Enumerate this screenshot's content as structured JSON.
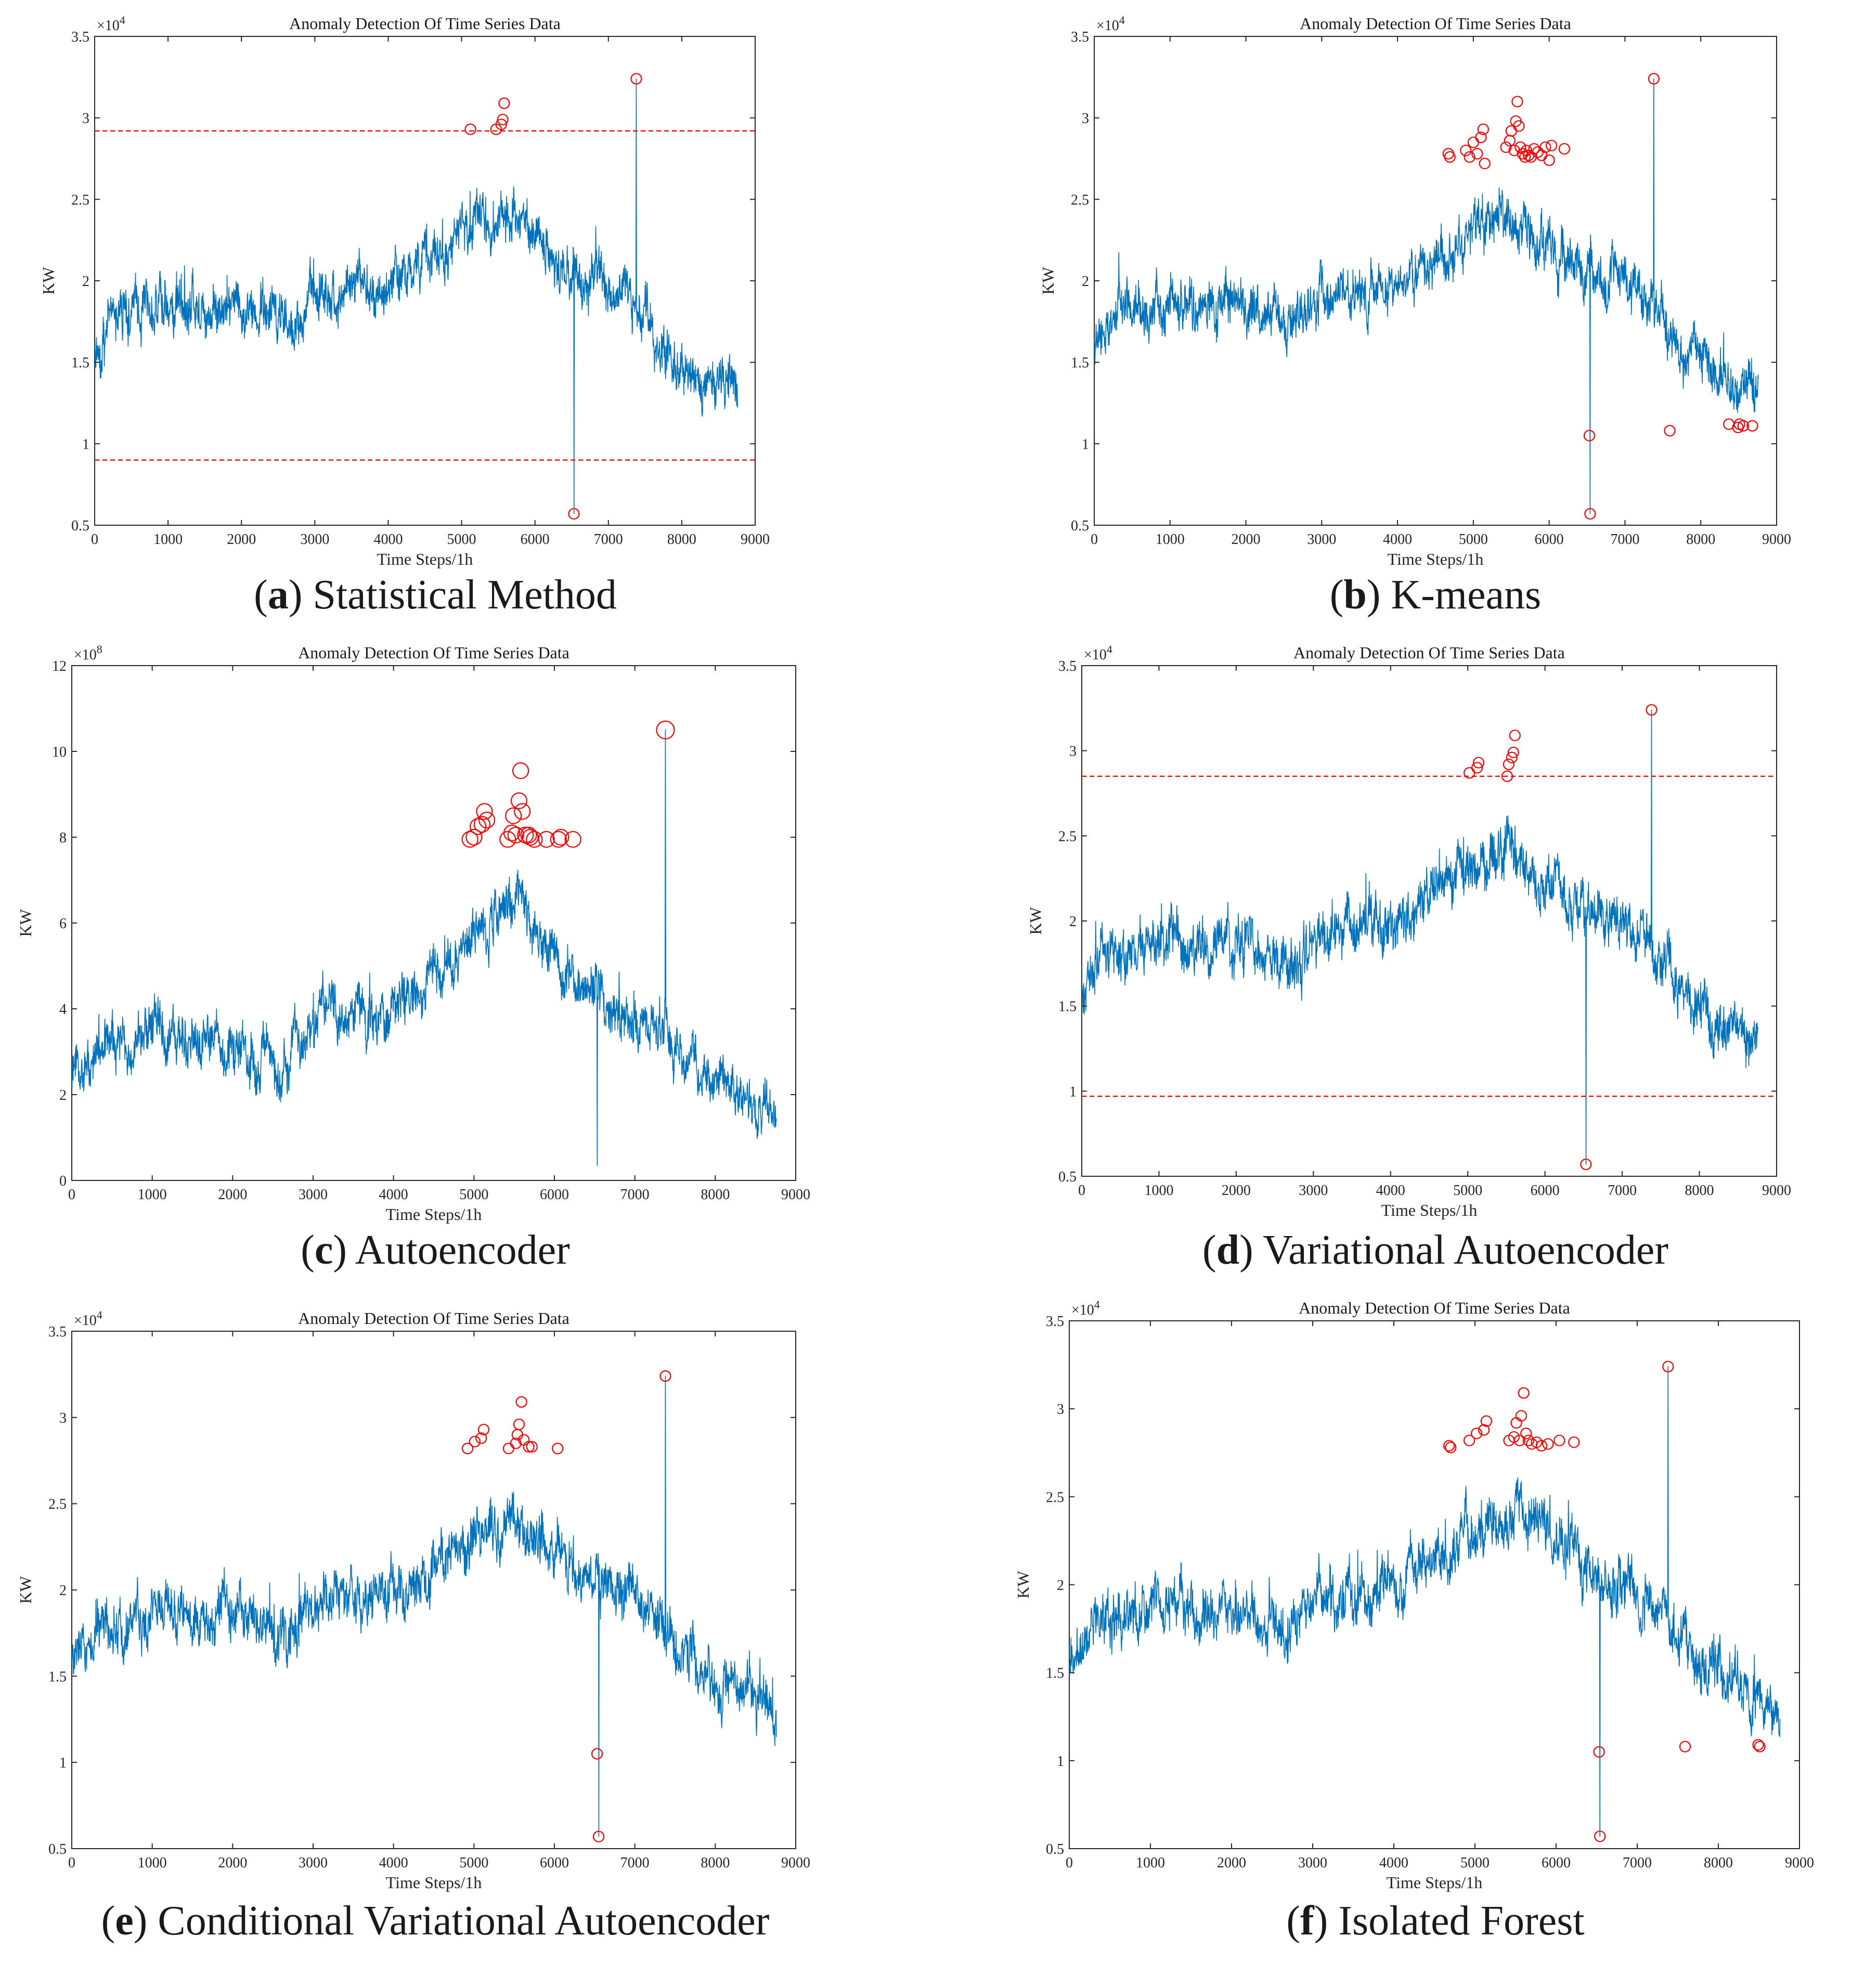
{
  "chart_data": [
    {
      "type": "line",
      "panel": "a",
      "caption_letter": "(a)",
      "caption_text": "Statistical Method",
      "title": "Anomaly Detection Of Time Series Data",
      "xlabel": "Time Steps/1h",
      "ylabel": "KW",
      "y_exponent": "×10",
      "y_exponent_power": "4",
      "xlim": [
        0,
        9000
      ],
      "ylim": [
        0.5,
        3.5
      ],
      "xticks": [
        0,
        1000,
        2000,
        3000,
        4000,
        5000,
        6000,
        7000,
        8000,
        9000
      ],
      "yticks": [
        0.5,
        1,
        1.5,
        2,
        2.5,
        3,
        3.5
      ],
      "ytick_labels": [
        "0.5",
        "1",
        "1.5",
        "2",
        "2.5",
        "3",
        "3.5"
      ],
      "series_color": "#0072BD",
      "anomaly_color": "#FF0000",
      "thresholds": [
        2.92,
        0.9
      ],
      "anomalies": [
        [
          5120,
          2.93
        ],
        [
          5470,
          2.93
        ],
        [
          5540,
          2.96
        ],
        [
          5560,
          2.99
        ],
        [
          5580,
          3.09
        ],
        [
          6530,
          0.57
        ],
        [
          7380,
          3.24
        ]
      ],
      "profile": [
        [
          0,
          1.55
        ],
        [
          300,
          1.8
        ],
        [
          1000,
          1.88
        ],
        [
          1500,
          1.83
        ],
        [
          2000,
          1.86
        ],
        [
          2700,
          1.72
        ],
        [
          3000,
          1.92
        ],
        [
          3500,
          1.95
        ],
        [
          4000,
          1.98
        ],
        [
          4500,
          2.1
        ],
        [
          5000,
          2.3
        ],
        [
          5300,
          2.35
        ],
        [
          5600,
          2.4
        ],
        [
          6000,
          2.25
        ],
        [
          6300,
          2.08
        ],
        [
          7000,
          2.0
        ],
        [
          7400,
          1.8
        ],
        [
          7800,
          1.55
        ],
        [
          8300,
          1.4
        ],
        [
          8750,
          1.3
        ]
      ],
      "spikes": [
        [
          6530,
          0.57
        ],
        [
          7380,
          3.24
        ]
      ],
      "noise": 0.14
    },
    {
      "type": "line",
      "panel": "b",
      "caption_letter": "(b)",
      "caption_text": "K-means",
      "title": "Anomaly Detection Of Time Series Data",
      "xlabel": "Time Steps/1h",
      "ylabel": "KW",
      "y_exponent": "×10",
      "y_exponent_power": "4",
      "xlim": [
        0,
        9000
      ],
      "ylim": [
        0.5,
        3.5
      ],
      "xticks": [
        0,
        1000,
        2000,
        3000,
        4000,
        5000,
        6000,
        7000,
        8000,
        9000
      ],
      "yticks": [
        0.5,
        1,
        1.5,
        2,
        2.5,
        3,
        3.5
      ],
      "ytick_labels": [
        "0.5",
        "1",
        "1.5",
        "2",
        "2.5",
        "3",
        "3.5"
      ],
      "series_color": "#0072BD",
      "anomaly_color": "#FF0000",
      "thresholds": [],
      "anomalies": [
        [
          4670,
          2.78
        ],
        [
          4690,
          2.76
        ],
        [
          4900,
          2.8
        ],
        [
          4950,
          2.76
        ],
        [
          5000,
          2.85
        ],
        [
          5050,
          2.78
        ],
        [
          5100,
          2.88
        ],
        [
          5130,
          2.93
        ],
        [
          5150,
          2.72
        ],
        [
          5430,
          2.82
        ],
        [
          5480,
          2.86
        ],
        [
          5500,
          2.92
        ],
        [
          5540,
          2.8
        ],
        [
          5560,
          2.98
        ],
        [
          5580,
          3.1
        ],
        [
          5600,
          2.95
        ],
        [
          5620,
          2.82
        ],
        [
          5650,
          2.78
        ],
        [
          5680,
          2.76
        ],
        [
          5700,
          2.8
        ],
        [
          5730,
          2.77
        ],
        [
          5760,
          2.76
        ],
        [
          5800,
          2.81
        ],
        [
          5850,
          2.79
        ],
        [
          5900,
          2.77
        ],
        [
          5950,
          2.82
        ],
        [
          6000,
          2.74
        ],
        [
          6030,
          2.83
        ],
        [
          6200,
          2.81
        ],
        [
          6530,
          1.05
        ],
        [
          6540,
          0.57
        ],
        [
          7380,
          3.24
        ],
        [
          7590,
          1.08
        ],
        [
          8370,
          1.12
        ],
        [
          8490,
          1.1
        ],
        [
          8510,
          1.12
        ],
        [
          8560,
          1.11
        ],
        [
          8680,
          1.11
        ]
      ],
      "profile": [
        [
          0,
          1.55
        ],
        [
          300,
          1.8
        ],
        [
          1000,
          1.88
        ],
        [
          1500,
          1.83
        ],
        [
          2000,
          1.86
        ],
        [
          2700,
          1.72
        ],
        [
          3000,
          1.92
        ],
        [
          3500,
          1.95
        ],
        [
          4000,
          1.98
        ],
        [
          4500,
          2.1
        ],
        [
          5000,
          2.3
        ],
        [
          5300,
          2.35
        ],
        [
          5600,
          2.4
        ],
        [
          6000,
          2.25
        ],
        [
          6300,
          2.08
        ],
        [
          7000,
          2.0
        ],
        [
          7400,
          1.8
        ],
        [
          7800,
          1.55
        ],
        [
          8300,
          1.4
        ],
        [
          8750,
          1.3
        ]
      ],
      "spikes": [
        [
          6540,
          0.57
        ],
        [
          7380,
          3.24
        ]
      ],
      "noise": 0.14
    },
    {
      "type": "line",
      "panel": "c",
      "caption_letter": "(c)",
      "caption_text": "Autoencoder",
      "title": "Anomaly Detection Of Time Series Data",
      "xlabel": "Time Steps/1h",
      "ylabel": "KW",
      "y_exponent": "×10",
      "y_exponent_power": "8",
      "xlim": [
        0,
        9000
      ],
      "ylim": [
        0,
        12
      ],
      "xticks": [
        0,
        1000,
        2000,
        3000,
        4000,
        5000,
        6000,
        7000,
        8000,
        9000
      ],
      "yticks": [
        0,
        2,
        4,
        6,
        8,
        10,
        12
      ],
      "ytick_labels": [
        "0",
        "2",
        "4",
        "6",
        "8",
        "10",
        "12"
      ],
      "series_color": "#0072BD",
      "anomaly_color": "#FF0000",
      "thresholds": [],
      "anomalies": [
        [
          4950,
          7.95
        ],
        [
          5000,
          8.0
        ],
        [
          5050,
          8.25
        ],
        [
          5100,
          8.3
        ],
        [
          5130,
          8.6
        ],
        [
          5160,
          8.4
        ],
        [
          5420,
          7.95
        ],
        [
          5470,
          8.1
        ],
        [
          5490,
          8.5
        ],
        [
          5520,
          8.05
        ],
        [
          5560,
          8.85
        ],
        [
          5580,
          9.55
        ],
        [
          5600,
          8.6
        ],
        [
          5640,
          8.05
        ],
        [
          5680,
          8.05
        ],
        [
          5700,
          8.0
        ],
        [
          5750,
          7.95
        ],
        [
          5900,
          7.95
        ],
        [
          6050,
          7.95
        ],
        [
          6080,
          8.0
        ],
        [
          6230,
          7.95
        ],
        [
          7380,
          10.5
        ]
      ],
      "profile": [
        [
          0,
          2.3
        ],
        [
          300,
          3.0
        ],
        [
          1000,
          3.5
        ],
        [
          1500,
          3.2
        ],
        [
          2000,
          3.0
        ],
        [
          2500,
          2.7
        ],
        [
          3000,
          3.7
        ],
        [
          3500,
          3.9
        ],
        [
          4000,
          4.0
        ],
        [
          4500,
          4.8
        ],
        [
          5000,
          5.8
        ],
        [
          5300,
          6.2
        ],
        [
          5600,
          6.5
        ],
        [
          6000,
          5.2
        ],
        [
          6300,
          4.5
        ],
        [
          7000,
          3.8
        ],
        [
          7400,
          3.2
        ],
        [
          7800,
          2.4
        ],
        [
          8300,
          1.9
        ],
        [
          8750,
          1.7
        ]
      ],
      "spikes": [
        [
          6530,
          0.35
        ],
        [
          7380,
          10.5
        ]
      ],
      "noise": 0.55
    },
    {
      "type": "line",
      "panel": "d",
      "caption_letter": "(d)",
      "caption_text": "Variational Autoencoder",
      "title": "Anomaly Detection Of Time Series Data",
      "xlabel": "Time Steps/1h",
      "ylabel": "KW",
      "y_exponent": "×10",
      "y_exponent_power": "4",
      "xlim": [
        0,
        9000
      ],
      "ylim": [
        0.5,
        3.5
      ],
      "xticks": [
        0,
        1000,
        2000,
        3000,
        4000,
        5000,
        6000,
        7000,
        8000,
        9000
      ],
      "yticks": [
        0.5,
        1,
        1.5,
        2,
        2.5,
        3,
        3.5
      ],
      "ytick_labels": [
        "0.5",
        "1",
        "1.5",
        "2",
        "2.5",
        "3",
        "3.5"
      ],
      "series_color": "#0072BD",
      "anomaly_color": "#FF0000",
      "thresholds": [
        2.85,
        0.97
      ],
      "anomalies": [
        [
          5020,
          2.87
        ],
        [
          5120,
          2.9
        ],
        [
          5140,
          2.93
        ],
        [
          5510,
          2.85
        ],
        [
          5530,
          2.92
        ],
        [
          5570,
          2.96
        ],
        [
          5590,
          2.99
        ],
        [
          5610,
          3.09
        ],
        [
          6530,
          0.57
        ],
        [
          7380,
          3.24
        ]
      ],
      "profile": [
        [
          0,
          1.55
        ],
        [
          300,
          1.8
        ],
        [
          1000,
          1.88
        ],
        [
          1500,
          1.83
        ],
        [
          2000,
          1.86
        ],
        [
          2700,
          1.72
        ],
        [
          3000,
          1.92
        ],
        [
          3500,
          1.95
        ],
        [
          4000,
          1.98
        ],
        [
          4500,
          2.1
        ],
        [
          5000,
          2.3
        ],
        [
          5300,
          2.35
        ],
        [
          5600,
          2.4
        ],
        [
          6000,
          2.25
        ],
        [
          6300,
          2.08
        ],
        [
          7000,
          2.0
        ],
        [
          7400,
          1.8
        ],
        [
          7800,
          1.55
        ],
        [
          8300,
          1.4
        ],
        [
          8750,
          1.3
        ]
      ],
      "spikes": [
        [
          6530,
          0.57
        ],
        [
          7380,
          3.24
        ]
      ],
      "noise": 0.14
    },
    {
      "type": "line",
      "panel": "e",
      "caption_letter": "(e)",
      "caption_text": "Conditional Variational Autoencoder",
      "title": "Anomaly Detection Of Time Series Data",
      "xlabel": "Time Steps/1h",
      "ylabel": "KW",
      "y_exponent": "×10",
      "y_exponent_power": "4",
      "xlim": [
        0,
        9000
      ],
      "ylim": [
        0.5,
        3.5
      ],
      "xticks": [
        0,
        1000,
        2000,
        3000,
        4000,
        5000,
        6000,
        7000,
        8000,
        9000
      ],
      "yticks": [
        0.5,
        1,
        1.5,
        2,
        2.5,
        3,
        3.5
      ],
      "ytick_labels": [
        "0.5",
        "1",
        "1.5",
        "2",
        "2.5",
        "3",
        "3.5"
      ],
      "series_color": "#0072BD",
      "anomaly_color": "#FF0000",
      "thresholds": [],
      "anomalies": [
        [
          4920,
          2.82
        ],
        [
          5010,
          2.86
        ],
        [
          5090,
          2.88
        ],
        [
          5120,
          2.93
        ],
        [
          5430,
          2.82
        ],
        [
          5520,
          2.85
        ],
        [
          5540,
          2.9
        ],
        [
          5560,
          2.96
        ],
        [
          5590,
          3.09
        ],
        [
          5620,
          2.87
        ],
        [
          5680,
          2.83
        ],
        [
          5720,
          2.83
        ],
        [
          6040,
          2.82
        ],
        [
          6530,
          1.05
        ],
        [
          6550,
          0.57
        ],
        [
          7380,
          3.24
        ]
      ],
      "profile": [
        [
          0,
          1.55
        ],
        [
          300,
          1.8
        ],
        [
          1000,
          1.88
        ],
        [
          1500,
          1.83
        ],
        [
          2000,
          1.86
        ],
        [
          2700,
          1.72
        ],
        [
          3000,
          1.92
        ],
        [
          3500,
          1.95
        ],
        [
          4000,
          1.98
        ],
        [
          4500,
          2.1
        ],
        [
          5000,
          2.3
        ],
        [
          5300,
          2.35
        ],
        [
          5600,
          2.4
        ],
        [
          6000,
          2.25
        ],
        [
          6300,
          2.08
        ],
        [
          7000,
          2.0
        ],
        [
          7400,
          1.8
        ],
        [
          7800,
          1.55
        ],
        [
          8300,
          1.4
        ],
        [
          8750,
          1.3
        ]
      ],
      "spikes": [
        [
          6550,
          0.57
        ],
        [
          7380,
          3.24
        ]
      ],
      "noise": 0.14
    },
    {
      "type": "line",
      "panel": "f",
      "caption_letter": "(f)",
      "caption_text": "Isolated Forest",
      "title": "Anomaly Detection Of Time Series Data",
      "xlabel": "Time Steps/1h",
      "ylabel": "KW",
      "y_exponent": "×10",
      "y_exponent_power": "4",
      "xlim": [
        0,
        9000
      ],
      "ylim": [
        0.5,
        3.5
      ],
      "xticks": [
        0,
        1000,
        2000,
        3000,
        4000,
        5000,
        6000,
        7000,
        8000,
        9000
      ],
      "yticks": [
        0.5,
        1,
        1.5,
        2,
        2.5,
        3,
        3.5
      ],
      "ytick_labels": [
        "0.5",
        "1",
        "1.5",
        "2",
        "2.5",
        "3",
        "3.5"
      ],
      "series_color": "#0072BD",
      "anomaly_color": "#FF0000",
      "thresholds": [],
      "anomalies": [
        [
          4680,
          2.79
        ],
        [
          4700,
          2.78
        ],
        [
          4930,
          2.82
        ],
        [
          5020,
          2.86
        ],
        [
          5110,
          2.88
        ],
        [
          5140,
          2.93
        ],
        [
          5420,
          2.82
        ],
        [
          5480,
          2.84
        ],
        [
          5510,
          2.92
        ],
        [
          5550,
          2.82
        ],
        [
          5570,
          2.96
        ],
        [
          5600,
          3.09
        ],
        [
          5630,
          2.86
        ],
        [
          5660,
          2.82
        ],
        [
          5700,
          2.8
        ],
        [
          5760,
          2.81
        ],
        [
          5820,
          2.79
        ],
        [
          5900,
          2.8
        ],
        [
          6040,
          2.82
        ],
        [
          6220,
          2.81
        ],
        [
          6530,
          1.05
        ],
        [
          6540,
          0.57
        ],
        [
          7380,
          3.24
        ],
        [
          7590,
          1.08
        ],
        [
          8490,
          1.09
        ],
        [
          8510,
          1.08
        ]
      ],
      "profile": [
        [
          0,
          1.55
        ],
        [
          300,
          1.8
        ],
        [
          1000,
          1.88
        ],
        [
          1500,
          1.83
        ],
        [
          2000,
          1.86
        ],
        [
          2700,
          1.72
        ],
        [
          3000,
          1.92
        ],
        [
          3500,
          1.95
        ],
        [
          4000,
          1.98
        ],
        [
          4500,
          2.1
        ],
        [
          5000,
          2.3
        ],
        [
          5300,
          2.35
        ],
        [
          5600,
          2.4
        ],
        [
          6000,
          2.25
        ],
        [
          6300,
          2.08
        ],
        [
          7000,
          2.0
        ],
        [
          7400,
          1.8
        ],
        [
          7800,
          1.55
        ],
        [
          8300,
          1.4
        ],
        [
          8750,
          1.3
        ]
      ],
      "spikes": [
        [
          6540,
          0.57
        ],
        [
          7380,
          3.24
        ]
      ],
      "noise": 0.14
    }
  ]
}
